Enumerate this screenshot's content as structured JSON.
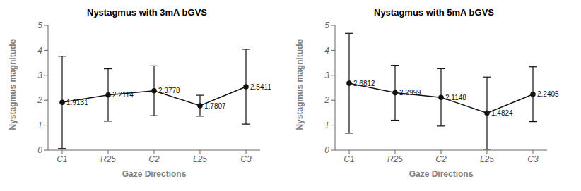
{
  "chart_data": [
    {
      "type": "line",
      "title": "Nystagmus with 3mA bGVS",
      "categories": [
        "C1",
        "R25",
        "C2",
        "L25",
        "C3"
      ],
      "values": [
        1.9131,
        2.2114,
        2.3778,
        1.7807,
        2.5411
      ],
      "errors": [
        1.85,
        1.05,
        1.0,
        0.42,
        1.5
      ],
      "data_labels": true,
      "xlabel": "Gaze Directions",
      "ylabel": "Nystagmus magnitude",
      "ylim": [
        0,
        5
      ],
      "yticks": [
        0,
        1,
        2,
        3,
        4,
        5
      ],
      "color": "#111111",
      "marker": "circle",
      "grid": false
    },
    {
      "type": "line",
      "title": "Nystagmus with 5mA bGVS",
      "categories": [
        "C1",
        "R25",
        "C2",
        "L25",
        "C3"
      ],
      "values": [
        2.6812,
        2.2999,
        2.1148,
        1.4824,
        2.2405
      ],
      "errors": [
        2.0,
        1.1,
        1.15,
        1.45,
        1.1
      ],
      "data_labels": true,
      "xlabel": "Gaze Directions",
      "ylabel": "Nystagmus magnitude",
      "ylim": [
        0,
        5
      ],
      "yticks": [
        0,
        1,
        2,
        3,
        4,
        5
      ],
      "color": "#111111",
      "marker": "circle",
      "grid": false
    }
  ]
}
